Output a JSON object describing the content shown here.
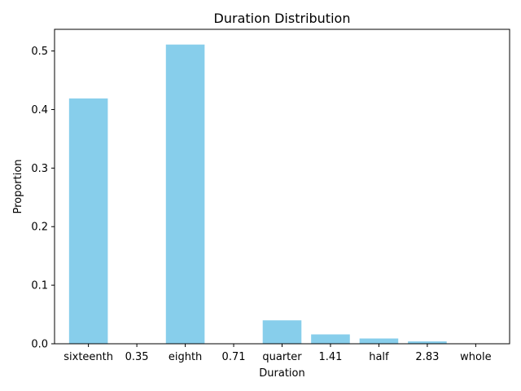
{
  "chart_data": {
    "type": "bar",
    "title": "Duration Distribution",
    "xlabel": "Duration",
    "ylabel": "Proportion",
    "categories": [
      "sixteenth",
      "0.35",
      "eighth",
      "0.71",
      "quarter",
      "1.41",
      "half",
      "2.83",
      "whole"
    ],
    "values": [
      0.419,
      0.0,
      0.511,
      0.0,
      0.04,
      0.016,
      0.009,
      0.004,
      0.0
    ],
    "ylim": [
      0,
      0.537
    ],
    "yticks": [
      0.0,
      0.1,
      0.2,
      0.3,
      0.4,
      0.5
    ],
    "ytick_labels": [
      "0.0",
      "0.1",
      "0.2",
      "0.3",
      "0.4",
      "0.5"
    ],
    "bar_color": "#87ceeb",
    "grid": false,
    "legend": "none"
  }
}
